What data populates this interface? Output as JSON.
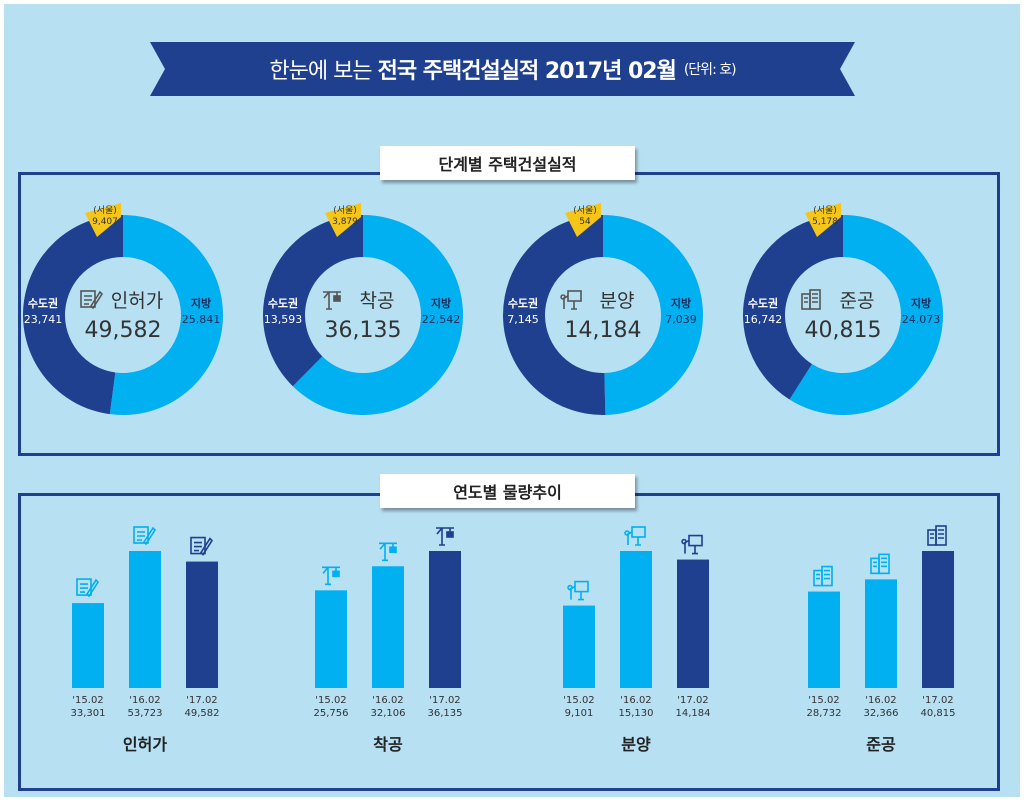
{
  "header": {
    "prefix": "한눈에 보는",
    "title": "전국 주택건설실적 2017년 02월",
    "unit": "(단위: 호)"
  },
  "colors": {
    "metro": "#1f3f8f",
    "local": "#00b0f0",
    "seoul": "#f5c518",
    "background": "#b7e0f3"
  },
  "sections": {
    "stage": "단계별 주택건설실적",
    "trend": "연도별 물량추이"
  },
  "chart_data": [
    {
      "type": "pie",
      "title": "단계별 주택건설실적",
      "labels": {
        "metro": "수도권",
        "local": "지방",
        "seoul": "(서울)"
      },
      "donuts": [
        {
          "name": "인허가",
          "icon": "document-pen-icon",
          "total": "49,582",
          "metro": 23741,
          "local": 25841,
          "seoul": 9407,
          "metro_t": "23,741",
          "local_t": "25,841",
          "seoul_t": "9,407"
        },
        {
          "name": "착공",
          "icon": "crane-icon",
          "total": "36,135",
          "metro": 13593,
          "local": 22542,
          "seoul": 3879,
          "metro_t": "13,593",
          "local_t": "22,542",
          "seoul_t": "3,879"
        },
        {
          "name": "분양",
          "icon": "presentation-icon",
          "total": "14,184",
          "metro": 7145,
          "local": 7039,
          "seoul": 54,
          "metro_t": "7,145",
          "local_t": "7,039",
          "seoul_t": "54"
        },
        {
          "name": "준공",
          "icon": "building-icon",
          "total": "40,815",
          "metro": 16742,
          "local": 24073,
          "seoul": 5178,
          "metro_t": "16,742",
          "local_t": "24,073",
          "seoul_t": "5,178"
        }
      ]
    },
    {
      "type": "bar",
      "title": "연도별 물량추이",
      "categories": [
        "'15.02",
        "'16.02",
        "'17.02"
      ],
      "groups": [
        {
          "name": "인허가",
          "values": [
            33301,
            53723,
            49582
          ],
          "labels": [
            "33,301",
            "53,723",
            "49,582"
          ]
        },
        {
          "name": "착공",
          "values": [
            25756,
            32106,
            36135
          ],
          "labels": [
            "25,756",
            "32,106",
            "36,135"
          ]
        },
        {
          "name": "분양",
          "values": [
            9101,
            15130,
            14184
          ],
          "labels": [
            "9,101",
            "15,130",
            "14,184"
          ]
        },
        {
          "name": "준공",
          "values": [
            28732,
            32366,
            40815
          ],
          "labels": [
            "28,732",
            "32,366",
            "40,815"
          ]
        }
      ]
    }
  ]
}
